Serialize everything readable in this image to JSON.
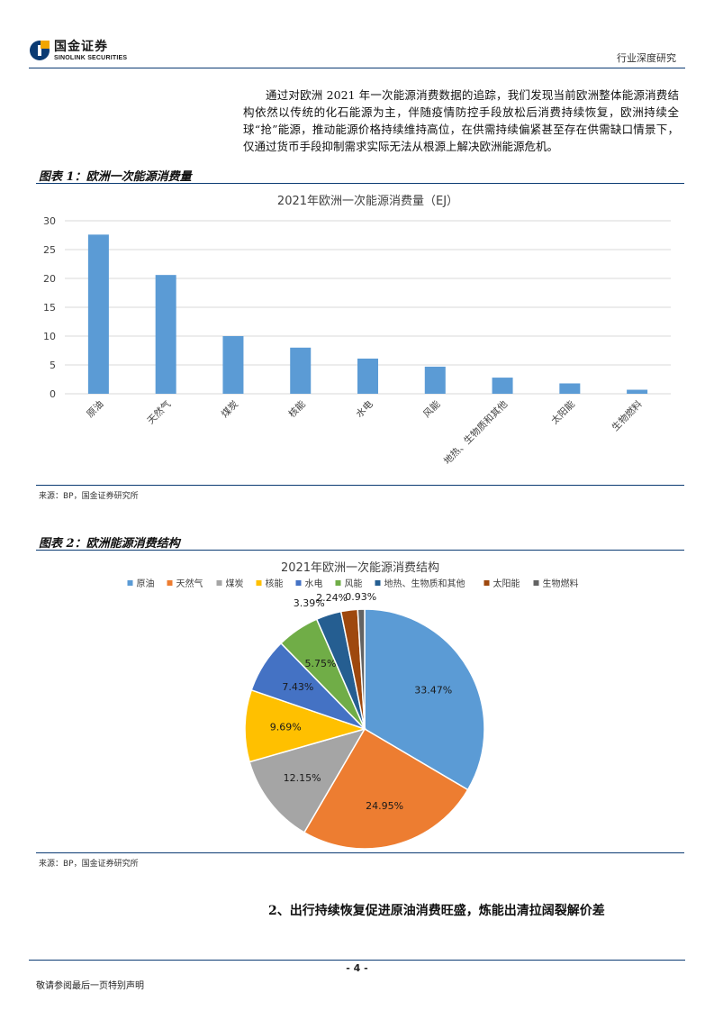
{
  "header": {
    "logo_cn": "国金证券",
    "logo_en": "SINOLINK SECURITIES",
    "report_type": "行业深度研究"
  },
  "intro_paragraph": "通过对欧洲 2021 年一次能源消费数据的追踪，我们发现当前欧洲整体能源消费结构依然以传统的化石能源为主，伴随疫情防控手段放松后消费持续恢复，欧洲持续全球“抢”能源，推动能源价格持续维持高位，在供需持续偏紧甚至存在供需缺口情景下，仅通过货币手段抑制需求实际无法从根源上解决欧洲能源危机。",
  "figure1": {
    "label": "图表 1：欧洲一次能源消费量",
    "source": "来源：BP，国金证券研究所"
  },
  "figure2": {
    "label": "图表 2：欧洲能源消费结构",
    "source": "来源：BP，国金证券研究所"
  },
  "chart_data": [
    {
      "type": "bar",
      "title": "2021年欧洲一次能源消费量（EJ）",
      "categories": [
        "原油",
        "天然气",
        "煤炭",
        "核能",
        "水电",
        "风能",
        "地热、生物质和其他",
        "太阳能",
        "生物燃料"
      ],
      "values": [
        27.6,
        20.6,
        10.0,
        8.0,
        6.1,
        4.7,
        2.8,
        1.8,
        0.7
      ],
      "yticks": [
        0,
        5,
        10,
        15,
        20,
        25,
        30
      ],
      "ylim": [
        0,
        30
      ],
      "grid": true,
      "color": "#5b9bd5"
    },
    {
      "type": "pie",
      "title": "2021年欧洲一次能源消费结构",
      "legend_position": "top",
      "slices": [
        {
          "name": "原油",
          "value": 33.47,
          "label": "33.47%",
          "color": "#5b9bd5"
        },
        {
          "name": "天然气",
          "value": 24.95,
          "label": "24.95%",
          "color": "#ed7d31"
        },
        {
          "name": "煤炭",
          "value": 12.15,
          "label": "12.15%",
          "color": "#a5a5a5"
        },
        {
          "name": "核能",
          "value": 9.69,
          "label": "9.69%",
          "color": "#ffc000"
        },
        {
          "name": "水电",
          "value": 7.43,
          "label": "7.43%",
          "color": "#4472c4"
        },
        {
          "name": "风能",
          "value": 5.75,
          "label": "5.75%",
          "color": "#70ad47"
        },
        {
          "name": "地热、生物质和其他",
          "value": 3.39,
          "label": "3.39%",
          "color": "#255e91"
        },
        {
          "name": "太阳能",
          "value": 2.24,
          "label": "2.24%",
          "color": "#9e480e"
        },
        {
          "name": "生物燃料",
          "value": 0.93,
          "label": "0.93%",
          "color": "#636363"
        }
      ]
    }
  ],
  "section_heading": "2、出行持续恢复促进原油消费旺盛，炼能出清拉阔裂解价差",
  "footer": {
    "page_number": "- 4 -",
    "disclaimer": "敬请参阅最后一页特别声明"
  }
}
